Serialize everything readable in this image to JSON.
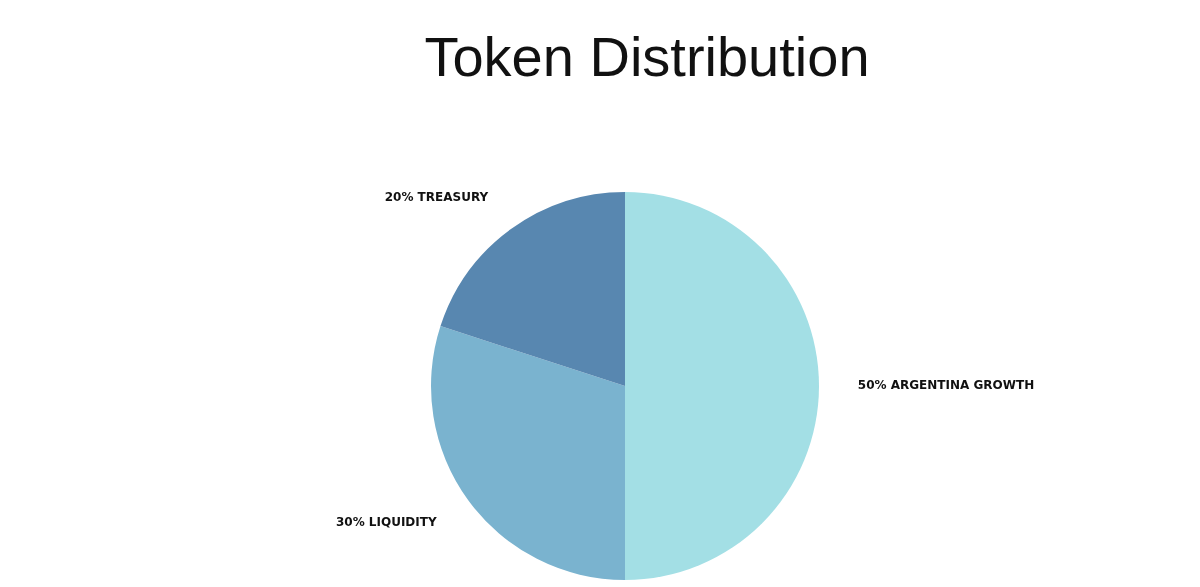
{
  "chart_data": {
    "type": "pie",
    "title": "Token Distribution",
    "categories": [
      "50% ARGENTINA GROWTH",
      "30% LIQUIDITY",
      "20% TREASURY"
    ],
    "values": [
      50,
      30,
      20
    ],
    "colors": [
      "#a3dfe5",
      "#7ab3cf",
      "#5887b0"
    ]
  }
}
